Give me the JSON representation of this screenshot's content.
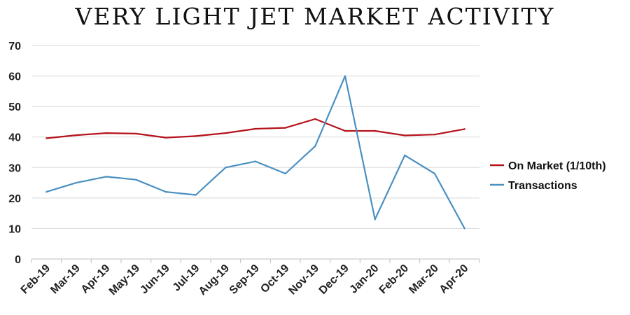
{
  "chart_data": {
    "type": "line",
    "title": "VERY LIGHT JET MARKET ACTIVITY",
    "categories": [
      "Feb-19",
      "Mar-19",
      "Apr-19",
      "May-19",
      "Jun-19",
      "Jul-19",
      "Aug-19",
      "Sep-19",
      "Oct-19",
      "Nov-19",
      "Dec-19",
      "Jan-20",
      "Feb-20",
      "Mar-20",
      "Apr-20"
    ],
    "series": [
      {
        "name": "On Market (1/10th)",
        "color": "#b5121b",
        "values": [
          39.6,
          40.6,
          41.3,
          41.1,
          39.8,
          40.3,
          41.3,
          42.7,
          43.0,
          45.9,
          42.0,
          42.0,
          40.5,
          40.8,
          42.6
        ]
      },
      {
        "name": "Transactions",
        "color": "#4a90c2",
        "values": [
          22,
          25,
          27,
          26,
          22,
          21,
          30,
          32,
          28,
          37,
          60,
          13,
          34,
          28,
          10
        ]
      }
    ],
    "ylim": [
      0,
      70
    ],
    "yticks": [
      0,
      10,
      20,
      30,
      40,
      50,
      60,
      70
    ],
    "grid": true,
    "legend_position": "right"
  }
}
